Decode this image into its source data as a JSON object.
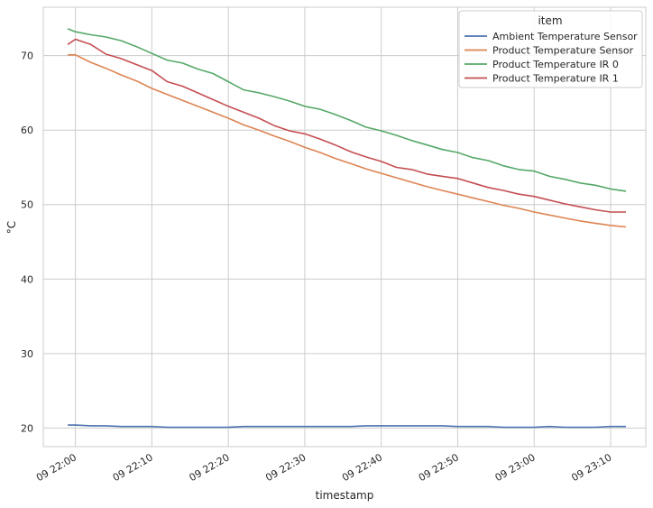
{
  "chart_data": {
    "type": "line",
    "xlabel": "timestamp",
    "ylabel": "°C",
    "x_range": [
      "22:00",
      "23:10"
    ],
    "ylim": [
      17.5,
      76.5
    ],
    "grid": true,
    "legend_placement": "top-right",
    "legend_title": "item",
    "xticks": [
      {
        "t": 0,
        "label": "09 22:00"
      },
      {
        "t": 10,
        "label": "09 22:10"
      },
      {
        "t": 20,
        "label": "09 22:20"
      },
      {
        "t": 30,
        "label": "09 22:30"
      },
      {
        "t": 40,
        "label": "09 22:40"
      },
      {
        "t": 50,
        "label": "09 22:50"
      },
      {
        "t": 60,
        "label": "09 23:00"
      },
      {
        "t": 70,
        "label": "09 23:10"
      }
    ],
    "yticks": [
      20,
      30,
      40,
      50,
      60,
      70
    ],
    "x_times": [
      "21:59",
      "22:00",
      "22:02",
      "22:04",
      "22:06",
      "22:08",
      "22:10",
      "22:12",
      "22:14",
      "22:16",
      "22:18",
      "22:20",
      "22:22",
      "22:24",
      "22:26",
      "22:28",
      "22:30",
      "22:32",
      "22:34",
      "22:36",
      "22:38",
      "22:40",
      "22:42",
      "22:44",
      "22:46",
      "22:48",
      "22:50",
      "22:52",
      "22:54",
      "22:56",
      "22:58",
      "23:00",
      "23:02",
      "23:04",
      "23:06",
      "23:08",
      "23:10",
      "23:12"
    ],
    "series": [
      {
        "name": "Ambient Temperature Sensor",
        "color": "#4c72b0",
        "values": [
          20.4,
          20.4,
          20.3,
          20.3,
          20.2,
          20.2,
          20.2,
          20.1,
          20.1,
          20.1,
          20.1,
          20.1,
          20.2,
          20.2,
          20.2,
          20.2,
          20.2,
          20.2,
          20.2,
          20.2,
          20.3,
          20.3,
          20.3,
          20.3,
          20.3,
          20.3,
          20.2,
          20.2,
          20.2,
          20.1,
          20.1,
          20.1,
          20.2,
          20.1,
          20.1,
          20.1,
          20.2,
          20.2
        ]
      },
      {
        "name": "Product Temperature Sensor",
        "color": "#dd8452",
        "values": [
          70.1,
          70.1,
          69.1,
          68.3,
          67.4,
          66.6,
          65.6,
          64.8,
          64.0,
          63.2,
          62.4,
          61.6,
          60.7,
          60.0,
          59.2,
          58.5,
          57.7,
          57.0,
          56.2,
          55.5,
          54.8,
          54.2,
          53.6,
          53.0,
          52.4,
          51.9,
          51.4,
          50.9,
          50.4,
          49.9,
          49.5,
          49.0,
          48.6,
          48.2,
          47.8,
          47.5,
          47.2,
          47.0
        ]
      },
      {
        "name": "Product Temperature IR 0",
        "color": "#55a868",
        "values": [
          73.6,
          73.2,
          72.8,
          72.5,
          72.0,
          71.2,
          70.3,
          69.4,
          69.0,
          68.2,
          67.6,
          66.5,
          65.4,
          65.0,
          64.5,
          63.9,
          63.2,
          62.8,
          62.1,
          61.3,
          60.4,
          59.9,
          59.3,
          58.6,
          58.0,
          57.4,
          57.0,
          56.3,
          55.9,
          55.2,
          54.7,
          54.5,
          53.8,
          53.4,
          52.9,
          52.6,
          52.1,
          51.8
        ]
      },
      {
        "name": "Product Temperature IR 1",
        "color": "#c44e52",
        "values": [
          71.5,
          72.2,
          71.5,
          70.2,
          69.6,
          68.8,
          68.0,
          66.5,
          65.9,
          65.0,
          64.1,
          63.2,
          62.4,
          61.6,
          60.6,
          59.9,
          59.5,
          58.8,
          58.0,
          57.1,
          56.4,
          55.8,
          55.0,
          54.7,
          54.1,
          53.8,
          53.5,
          52.9,
          52.3,
          51.9,
          51.4,
          51.1,
          50.6,
          50.1,
          49.7,
          49.3,
          49.0,
          49.0
        ]
      }
    ]
  }
}
